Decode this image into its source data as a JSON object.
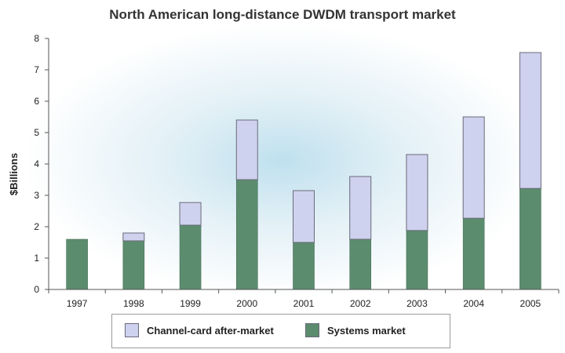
{
  "chart_data": {
    "type": "bar",
    "stacked": true,
    "title": "North American long-distance DWDM transport market",
    "ylabel": "$Billions",
    "xlabel": "",
    "ylim": [
      0,
      8
    ],
    "yticks": [
      0,
      1,
      2,
      3,
      4,
      5,
      6,
      7,
      8
    ],
    "grid": false,
    "legend_position": "bottom",
    "categories": [
      "1997",
      "1998",
      "1999",
      "2000",
      "2001",
      "2002",
      "2003",
      "2004",
      "2005"
    ],
    "series": [
      {
        "name": "Systems market",
        "color": "#5b8c6e",
        "values": [
          1.6,
          1.55,
          2.05,
          3.5,
          1.5,
          1.6,
          1.88,
          2.27,
          3.22
        ]
      },
      {
        "name": "Channel-card after-market",
        "color": "#cfd2ee",
        "values": [
          0.0,
          0.25,
          0.72,
          1.9,
          1.65,
          2.0,
          2.42,
          3.23,
          4.33
        ]
      }
    ]
  }
}
